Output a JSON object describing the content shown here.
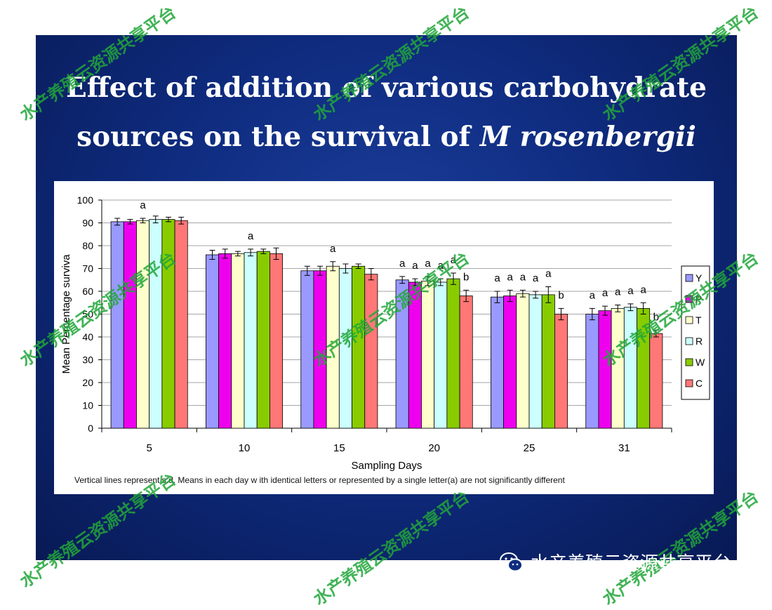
{
  "slide": {
    "title_line1": "Effect of addition of various carbohydrate",
    "title_line2_prefix": "sources on the survival of ",
    "title_line2_italic": "M rosenbergii",
    "footnote": "Vertical lines represent s.d. Means in each day w ith identical letters or represented by a single letter(a) are not significantly different"
  },
  "watermark": {
    "text": "水产养殖云资源共享平台",
    "color": "#22a63a"
  },
  "wechat": {
    "icon": "wechat-icon",
    "text": "水产养殖云资源共享平台"
  },
  "chart_data": {
    "type": "bar",
    "title": "",
    "xlabel": "Sampling Days",
    "ylabel": "Mean Percentage surviva",
    "ylim": [
      0,
      100
    ],
    "yticks": [
      0,
      10,
      20,
      30,
      40,
      50,
      60,
      70,
      80,
      90,
      100
    ],
    "grid": true,
    "legend_position": "right",
    "categories": [
      "5",
      "10",
      "15",
      "20",
      "25",
      "31"
    ],
    "series": [
      {
        "name": "Y",
        "color": "#9999ff",
        "values": [
          90.5,
          76.0,
          69.0,
          65.0,
          57.5,
          50.0
        ],
        "errors": [
          1.5,
          2.0,
          2.0,
          1.5,
          2.5,
          2.5
        ]
      },
      {
        "name": "P",
        "color": "#ee00ee",
        "values": [
          90.5,
          76.5,
          69.0,
          64.0,
          58.0,
          51.5
        ],
        "errors": [
          1.0,
          2.0,
          2.0,
          1.5,
          2.5,
          2.0
        ]
      },
      {
        "name": "T",
        "color": "#ffffcc",
        "values": [
          91.0,
          76.5,
          71.0,
          64.5,
          59.0,
          52.5
        ],
        "errors": [
          1.0,
          1.0,
          2.0,
          2.0,
          1.5,
          1.5
        ]
      },
      {
        "name": "R",
        "color": "#ccffff",
        "values": [
          91.5,
          77.0,
          70.0,
          64.0,
          58.5,
          53.0
        ],
        "errors": [
          1.5,
          1.5,
          2.0,
          1.5,
          1.5,
          1.5
        ]
      },
      {
        "name": "W",
        "color": "#88cc00",
        "values": [
          91.5,
          77.5,
          71.0,
          65.5,
          58.5,
          52.5
        ],
        "errors": [
          1.0,
          1.0,
          1.0,
          2.5,
          3.5,
          2.5
        ]
      },
      {
        "name": "C",
        "color": "#ff7777",
        "values": [
          91.0,
          76.5,
          67.5,
          58.0,
          50.0,
          41.5
        ],
        "errors": [
          1.5,
          2.5,
          2.5,
          2.5,
          2.5,
          1.5
        ]
      }
    ],
    "annotations": [
      {
        "category": "5",
        "series": "T",
        "text": "a"
      },
      {
        "category": "10",
        "series": "R",
        "text": "a"
      },
      {
        "category": "15",
        "series": "T",
        "text": "a"
      },
      {
        "category": "20",
        "series": "Y",
        "text": "a"
      },
      {
        "category": "20",
        "series": "P",
        "text": "a"
      },
      {
        "category": "20",
        "series": "T",
        "text": "a"
      },
      {
        "category": "20",
        "series": "R",
        "text": "a"
      },
      {
        "category": "20",
        "series": "W",
        "text": "a"
      },
      {
        "category": "20",
        "series": "C",
        "text": "b"
      },
      {
        "category": "25",
        "series": "Y",
        "text": "a"
      },
      {
        "category": "25",
        "series": "P",
        "text": "a"
      },
      {
        "category": "25",
        "series": "T",
        "text": "a"
      },
      {
        "category": "25",
        "series": "R",
        "text": "a"
      },
      {
        "category": "25",
        "series": "W",
        "text": "a"
      },
      {
        "category": "25",
        "series": "C",
        "text": "b"
      },
      {
        "category": "31",
        "series": "Y",
        "text": "a"
      },
      {
        "category": "31",
        "series": "P",
        "text": "a"
      },
      {
        "category": "31",
        "series": "T",
        "text": "a"
      },
      {
        "category": "31",
        "series": "R",
        "text": "a"
      },
      {
        "category": "31",
        "series": "W",
        "text": "a"
      },
      {
        "category": "31",
        "series": "C",
        "text": "b"
      }
    ]
  }
}
